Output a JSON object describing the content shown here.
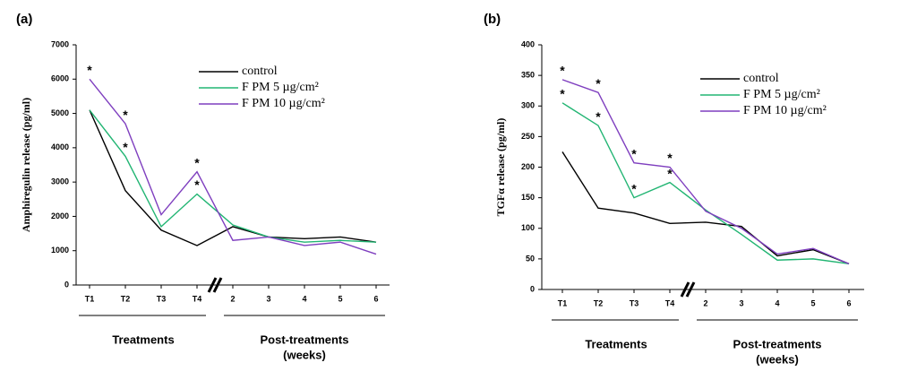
{
  "chart_data": [
    {
      "type": "line",
      "title": "(a)",
      "y_label": "Amphiregulin release (pg/ml)",
      "categories": [
        "T1",
        "T2",
        "T3",
        "T4",
        "2",
        "3",
        "4",
        "5",
        "6"
      ],
      "series": [
        {
          "name": "control",
          "color": "#000000",
          "values": [
            5100,
            2750,
            1600,
            1150,
            1700,
            1400,
            1350,
            1400,
            1250
          ]
        },
        {
          "name": "F PM 5 µg/cm²",
          "color": "#22b573",
          "values": [
            5100,
            3750,
            1700,
            2650,
            1750,
            1400,
            1250,
            1300,
            1250
          ]
        },
        {
          "name": "F PM 10 µg/cm²",
          "color": "#7f3fbf",
          "values": [
            6000,
            4700,
            2050,
            3300,
            1300,
            1400,
            1150,
            1250,
            900
          ]
        }
      ],
      "annotations": [
        {
          "text": "*",
          "category": "T1",
          "series": "F PM 10 µg/cm²"
        },
        {
          "text": "*",
          "category": "T2",
          "series": "F PM 10 µg/cm²"
        },
        {
          "text": "*",
          "category": "T2",
          "series": "F PM 5 µg/cm²"
        },
        {
          "text": "*",
          "category": "T4",
          "series": "F PM 10 µg/cm²"
        },
        {
          "text": "*",
          "category": "T4",
          "series": "F PM 5 µg/cm²"
        }
      ],
      "group_labels": [
        "Treatments",
        "Post-treatments",
        "(weeks)"
      ],
      "ylim": [
        0,
        7000
      ],
      "yticks": [
        0,
        1000,
        2000,
        3000,
        4000,
        5000,
        6000,
        7000
      ]
    },
    {
      "type": "line",
      "title": "(b)",
      "y_label": "TGFα release (pg/ml)",
      "categories": [
        "T1",
        "T2",
        "T3",
        "T4",
        "2",
        "3",
        "4",
        "5",
        "6"
      ],
      "series": [
        {
          "name": "control",
          "color": "#000000",
          "values": [
            225,
            133,
            125,
            108,
            110,
            103,
            55,
            65,
            42
          ]
        },
        {
          "name": "F PM 5 µg/cm²",
          "color": "#22b573",
          "values": [
            305,
            268,
            150,
            175,
            130,
            90,
            48,
            50,
            42
          ]
        },
        {
          "name": "F PM 10 µg/cm²",
          "color": "#7f3fbf",
          "values": [
            343,
            322,
            207,
            200,
            128,
            100,
            58,
            67,
            42
          ]
        }
      ],
      "annotations": [
        {
          "text": "*",
          "category": "T1",
          "series": "F PM 10 µg/cm²"
        },
        {
          "text": "*",
          "category": "T1",
          "series": "F PM 5 µg/cm²"
        },
        {
          "text": "*",
          "category": "T2",
          "series": "F PM 10 µg/cm²"
        },
        {
          "text": "*",
          "category": "T2",
          "series": "F PM 5 µg/cm²"
        },
        {
          "text": "*",
          "category": "T3",
          "series": "F PM 10 µg/cm²"
        },
        {
          "text": "*",
          "category": "T3",
          "series": "F PM 5 µg/cm²"
        },
        {
          "text": "*",
          "category": "T4",
          "series": "F PM 10 µg/cm²"
        },
        {
          "text": "*",
          "category": "T4",
          "series": "F PM 5 µg/cm²"
        }
      ],
      "group_labels": [
        "Treatments",
        "Post-treatments",
        "(weeks)"
      ],
      "ylim": [
        0,
        400
      ],
      "yticks": [
        0,
        50,
        100,
        150,
        200,
        250,
        300,
        350,
        400
      ]
    }
  ]
}
